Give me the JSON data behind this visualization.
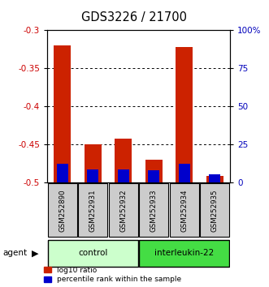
{
  "title": "GDS3226 / 21700",
  "samples": [
    "GSM252890",
    "GSM252931",
    "GSM252932",
    "GSM252933",
    "GSM252934",
    "GSM252935"
  ],
  "log10_ratio": [
    -0.32,
    -0.45,
    -0.443,
    -0.47,
    -0.322,
    -0.492
  ],
  "percentile_rank": [
    12.0,
    8.5,
    8.5,
    8.0,
    12.0,
    5.0
  ],
  "ylim_left": [
    -0.5,
    -0.3
  ],
  "yticks_left": [
    -0.5,
    -0.45,
    -0.4,
    -0.35,
    -0.3
  ],
  "yticks_right_labels": [
    "0",
    "25",
    "50",
    "75",
    "100%"
  ],
  "ylabel_left_color": "#cc0000",
  "ylabel_right_color": "#0000bb",
  "bar_bottom": -0.5,
  "pct_scale_factor": 0.2,
  "control_color_light": "#ccffcc",
  "interleukin_color": "#44dd44",
  "sample_bg_color": "#cccccc",
  "red_bar_color": "#cc2200",
  "blue_bar_color": "#0000cc",
  "legend_red": "log10 ratio",
  "legend_blue": "percentile rank within the sample"
}
